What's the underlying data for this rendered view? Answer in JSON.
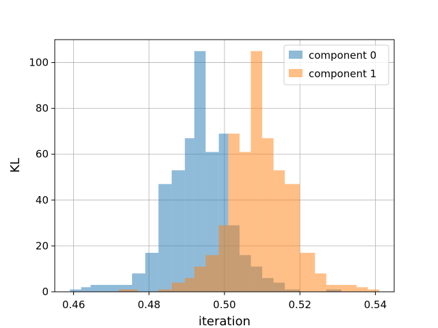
{
  "chart_data": {
    "type": "histogram",
    "xlabel": "iteration",
    "ylabel": "KL",
    "xlim": [
      0.455,
      0.545
    ],
    "ylim": [
      0,
      110
    ],
    "xticks": [
      0.46,
      0.48,
      0.5,
      0.52,
      0.54
    ],
    "xtick_labels": [
      "0.46",
      "0.48",
      "0.50",
      "0.52",
      "0.54"
    ],
    "yticks": [
      0,
      20,
      40,
      60,
      80,
      100
    ],
    "ytick_labels": [
      "0",
      "20",
      "40",
      "60",
      "80",
      "100"
    ],
    "grid": true,
    "legend_position": "upper right",
    "series": [
      {
        "name": "component 0",
        "color": "#1f77b4",
        "bins": [
          [
            0.459,
            0.462,
            1
          ],
          [
            0.462,
            0.4645,
            2
          ],
          [
            0.4645,
            0.47,
            3
          ],
          [
            0.47,
            0.4755,
            3
          ],
          [
            0.4755,
            0.479,
            8
          ],
          [
            0.479,
            0.4825,
            17
          ],
          [
            0.4825,
            0.486,
            47
          ],
          [
            0.486,
            0.4895,
            53
          ],
          [
            0.4895,
            0.492,
            67
          ],
          [
            0.492,
            0.495,
            105
          ],
          [
            0.495,
            0.4985,
            61
          ],
          [
            0.4985,
            0.501,
            69
          ],
          [
            0.501,
            0.504,
            29
          ],
          [
            0.504,
            0.507,
            16
          ],
          [
            0.507,
            0.51,
            11
          ],
          [
            0.51,
            0.513,
            6
          ],
          [
            0.513,
            0.516,
            4
          ],
          [
            0.516,
            0.52,
            1
          ],
          [
            0.527,
            0.531,
            1
          ]
        ]
      },
      {
        "name": "component 1",
        "color": "#ff7f0e",
        "bins": [
          [
            0.472,
            0.477,
            1
          ],
          [
            0.4825,
            0.486,
            1
          ],
          [
            0.486,
            0.4895,
            4
          ],
          [
            0.4895,
            0.492,
            6
          ],
          [
            0.492,
            0.495,
            11
          ],
          [
            0.495,
            0.4985,
            16
          ],
          [
            0.4985,
            0.501,
            29
          ],
          [
            0.501,
            0.504,
            69
          ],
          [
            0.504,
            0.507,
            61
          ],
          [
            0.507,
            0.51,
            105
          ],
          [
            0.51,
            0.513,
            67
          ],
          [
            0.513,
            0.516,
            53
          ],
          [
            0.516,
            0.52,
            47
          ],
          [
            0.52,
            0.524,
            17
          ],
          [
            0.524,
            0.527,
            8
          ],
          [
            0.527,
            0.531,
            3
          ],
          [
            0.531,
            0.535,
            3
          ],
          [
            0.535,
            0.538,
            2
          ],
          [
            0.538,
            0.541,
            1
          ]
        ]
      }
    ]
  }
}
